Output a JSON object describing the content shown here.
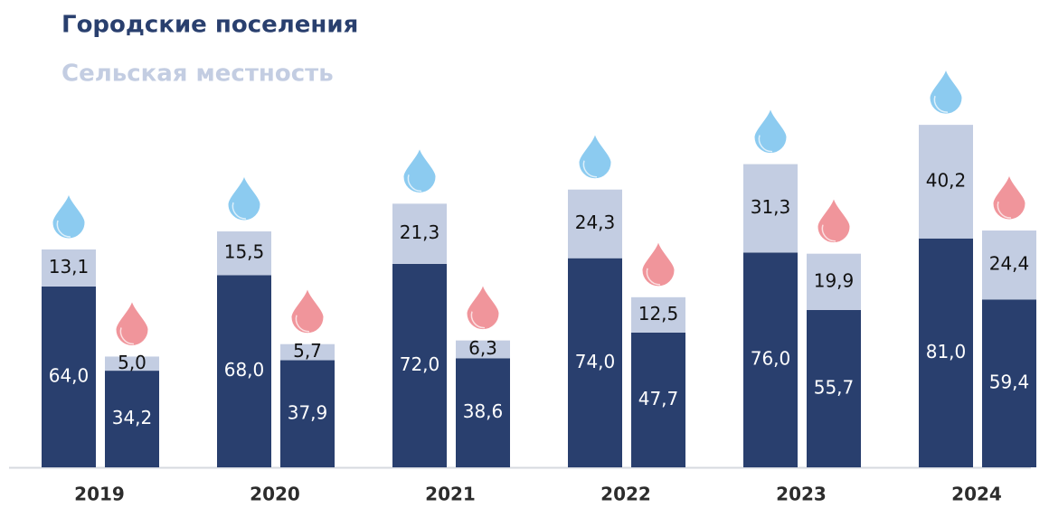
{
  "chart_data": {
    "type": "bar",
    "stacked": true,
    "categories": [
      "2019",
      "2020",
      "2021",
      "2022",
      "2023",
      "2024"
    ],
    "legend": [
      {
        "name": "Городские поселения",
        "color": "#293f6e"
      },
      {
        "name": "Сельская местность",
        "color": "#c3cde2"
      }
    ],
    "groups": [
      {
        "marker_color": "#8ccbf0",
        "series": [
          {
            "values": [
              64.0,
              68.0,
              72.0,
              74.0,
              76.0,
              81.0
            ],
            "value_labels": [
              "64,0",
              "68,0",
              "72,0",
              "74,0",
              "76,0",
              "81,0"
            ]
          },
          {
            "values": [
              13.1,
              15.5,
              21.3,
              24.3,
              31.3,
              40.2
            ],
            "value_labels": [
              "13,1",
              "15,5",
              "21,3",
              "24,3",
              "31,3",
              "40,2"
            ]
          }
        ]
      },
      {
        "marker_color": "#f0959b",
        "series": [
          {
            "values": [
              34.2,
              37.9,
              38.6,
              47.7,
              55.7,
              59.4
            ],
            "value_labels": [
              "34,2",
              "37,9",
              "38,6",
              "47,7",
              "55,7",
              "59,4"
            ]
          },
          {
            "values": [
              5.0,
              5.7,
              6.3,
              12.5,
              19.9,
              24.4
            ],
            "value_labels": [
              "5,0",
              "5,7",
              "6,3",
              "12,5",
              "19,9",
              "24,4"
            ]
          }
        ]
      }
    ]
  }
}
